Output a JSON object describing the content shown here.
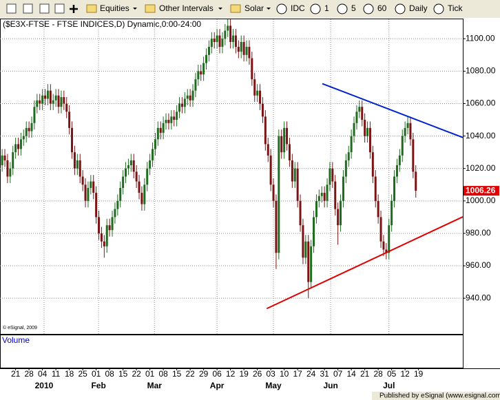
{
  "toolbar": {
    "items": [
      "Equities",
      "Other Intervals",
      "Solar",
      "IDC",
      "1",
      "5",
      "60",
      "Daily",
      "Tick"
    ]
  },
  "chart_data": {
    "type": "candlestick",
    "title": "($E3X-FTSE - FTSE INDICES,D) Dynamic,0:00-24:00",
    "copyright": "© eSignal, 2009",
    "volume_label": "Volume",
    "up_color": "#1f6b1f",
    "down_color": "#7a1414",
    "open": [
      1022,
      1028,
      1025,
      1015,
      1020,
      1030,
      1035,
      1032,
      1038,
      1040,
      1045,
      1043,
      1048,
      1058,
      1062,
      1060,
      1065,
      1063,
      1068,
      1060,
      1062,
      1065,
      1058,
      1064,
      1060,
      1055,
      1045,
      1030,
      1020,
      1025,
      1015,
      1010,
      1000,
      1008,
      1012,
      1005,
      990,
      980,
      975,
      972,
      985,
      982,
      990,
      995,
      1000,
      1008,
      1015,
      1020,
      1022,
      1025,
      1018,
      1012,
      1005,
      998,
      1010,
      1020,
      1025,
      1032,
      1038,
      1045,
      1042,
      1048,
      1050,
      1048,
      1052,
      1050,
      1055,
      1060,
      1058,
      1063,
      1065,
      1062,
      1068,
      1075,
      1080,
      1078,
      1085,
      1090,
      1095,
      1100,
      1098,
      1102,
      1095,
      1100,
      1105,
      1108,
      1098,
      1102,
      1095,
      1092,
      1098,
      1090,
      1095,
      1088,
      1075,
      1065,
      1068,
      1060,
      1052,
      1035,
      1028,
      1010,
      1000,
      968,
      1040,
      1030,
      1045,
      1035,
      1025,
      1012,
      1020,
      1000,
      985,
      965,
      975,
      950,
      972,
      990,
      1000,
      1003,
      1005,
      1000,
      1010,
      1020,
      1012,
      995,
      985,
      1000,
      1015,
      1025,
      1030,
      1040,
      1048,
      1055,
      1058,
      1050,
      1040,
      1045,
      1030,
      1015,
      1000,
      990,
      975,
      970,
      968,
      985,
      1000,
      1015,
      1022,
      1028,
      1040,
      1045,
      1048,
      1038,
      1018
    ],
    "high": [
      1032,
      1032,
      1029,
      1024,
      1034,
      1039,
      1039,
      1042,
      1044,
      1049,
      1049,
      1052,
      1062,
      1066,
      1066,
      1069,
      1069,
      1072,
      1072,
      1066,
      1069,
      1069,
      1068,
      1068,
      1064,
      1059,
      1049,
      1034,
      1029,
      1029,
      1019,
      1014,
      1012,
      1016,
      1016,
      1009,
      994,
      984,
      979,
      989,
      989,
      994,
      999,
      1004,
      1012,
      1019,
      1024,
      1026,
      1029,
      1029,
      1022,
      1016,
      1009,
      1014,
      1024,
      1029,
      1036,
      1042,
      1049,
      1049,
      1052,
      1054,
      1054,
      1056,
      1056,
      1059,
      1064,
      1064,
      1067,
      1069,
      1069,
      1072,
      1079,
      1084,
      1084,
      1089,
      1094,
      1099,
      1104,
      1104,
      1106,
      1106,
      1104,
      1109,
      1112,
      1112,
      1106,
      1106,
      1099,
      1102,
      1102,
      1099,
      1099,
      1092,
      1079,
      1072,
      1072,
      1064,
      1056,
      1039,
      1032,
      1014,
      1004,
      1044,
      1044,
      1049,
      1049,
      1039,
      1029,
      1024,
      1024,
      1004,
      989,
      979,
      979,
      976,
      994,
      1004,
      1007,
      1009,
      1009,
      1014,
      1024,
      1024,
      1016,
      999,
      1004,
      1019,
      1029,
      1034,
      1044,
      1052,
      1059,
      1062,
      1062,
      1054,
      1049,
      1049,
      1034,
      1019,
      1004,
      994,
      979,
      974,
      989,
      1004,
      1019,
      1026,
      1032,
      1044,
      1049,
      1052,
      1052,
      1042,
      1022
    ],
    "low": [
      1018,
      1021,
      1011,
      1011,
      1016,
      1026,
      1028,
      1028,
      1034,
      1036,
      1039,
      1039,
      1044,
      1054,
      1056,
      1056,
      1059,
      1059,
      1056,
      1056,
      1058,
      1054,
      1054,
      1056,
      1051,
      1041,
      1026,
      1016,
      1016,
      1011,
      1006,
      996,
      996,
      1004,
      1001,
      986,
      976,
      971,
      965,
      968,
      978,
      978,
      986,
      991,
      996,
      1004,
      1011,
      1016,
      1018,
      1014,
      1008,
      1001,
      994,
      994,
      1006,
      1016,
      1021,
      1028,
      1034,
      1038,
      1038,
      1044,
      1044,
      1044,
      1046,
      1046,
      1051,
      1054,
      1054,
      1059,
      1058,
      1058,
      1064,
      1071,
      1074,
      1074,
      1081,
      1086,
      1091,
      1094,
      1094,
      1091,
      1091,
      1096,
      1101,
      1094,
      1094,
      1091,
      1088,
      1088,
      1086,
      1086,
      1084,
      1071,
      1061,
      1061,
      1056,
      1048,
      1031,
      1024,
      1006,
      996,
      958,
      964,
      1026,
      1026,
      1031,
      1021,
      1008,
      1008,
      996,
      981,
      961,
      961,
      940,
      946,
      968,
      986,
      996,
      999,
      996,
      996,
      1006,
      1008,
      991,
      973,
      981,
      996,
      1011,
      1021,
      1026,
      1036,
      1044,
      1051,
      1046,
      1036,
      1036,
      1026,
      1011,
      996,
      986,
      971,
      966,
      964,
      964,
      981,
      996,
      1011,
      1018,
      1024,
      1036,
      1041,
      1034,
      1014,
      1002
    ],
    "close": [
      1028,
      1025,
      1015,
      1020,
      1030,
      1035,
      1032,
      1038,
      1040,
      1045,
      1043,
      1048,
      1058,
      1062,
      1060,
      1065,
      1063,
      1068,
      1060,
      1062,
      1065,
      1058,
      1064,
      1060,
      1055,
      1045,
      1030,
      1020,
      1025,
      1015,
      1010,
      1000,
      1008,
      1012,
      1005,
      990,
      980,
      975,
      972,
      985,
      982,
      990,
      995,
      1000,
      1008,
      1015,
      1020,
      1022,
      1025,
      1018,
      1012,
      1005,
      998,
      1010,
      1020,
      1025,
      1032,
      1038,
      1045,
      1042,
      1048,
      1050,
      1048,
      1052,
      1050,
      1055,
      1060,
      1058,
      1063,
      1065,
      1062,
      1068,
      1075,
      1080,
      1078,
      1085,
      1090,
      1095,
      1100,
      1098,
      1102,
      1095,
      1100,
      1105,
      1108,
      1098,
      1102,
      1095,
      1092,
      1098,
      1090,
      1095,
      1088,
      1075,
      1065,
      1068,
      1060,
      1052,
      1035,
      1028,
      1010,
      1000,
      968,
      1040,
      1030,
      1045,
      1035,
      1025,
      1012,
      1020,
      1000,
      985,
      965,
      975,
      950,
      972,
      990,
      1000,
      1003,
      1005,
      1000,
      1010,
      1020,
      1012,
      995,
      985,
      1000,
      1015,
      1025,
      1030,
      1040,
      1048,
      1055,
      1058,
      1050,
      1040,
      1045,
      1030,
      1015,
      1000,
      990,
      975,
      970,
      968,
      985,
      1000,
      1015,
      1022,
      1028,
      1040,
      1045,
      1048,
      1038,
      1018,
      1006.26
    ],
    "xlim": [
      -0.8,
      171.5
    ],
    "xticks": [
      {
        "value": 5,
        "label": "21"
      },
      {
        "value": 10,
        "label": "28"
      },
      {
        "value": 15,
        "label": "04"
      },
      {
        "value": 20,
        "label": "11"
      },
      {
        "value": 25,
        "label": "18"
      },
      {
        "value": 30,
        "label": "25"
      },
      {
        "value": 35,
        "label": "01"
      },
      {
        "value": 40,
        "label": "08"
      },
      {
        "value": 45,
        "label": "15"
      },
      {
        "value": 50,
        "label": "22"
      },
      {
        "value": 55,
        "label": "01"
      },
      {
        "value": 60,
        "label": "08"
      },
      {
        "value": 65,
        "label": "15"
      },
      {
        "value": 70,
        "label": "22"
      },
      {
        "value": 75,
        "label": "29"
      },
      {
        "value": 80,
        "label": "06"
      },
      {
        "value": 85,
        "label": "12"
      },
      {
        "value": 90,
        "label": "19"
      },
      {
        "value": 95,
        "label": "26"
      },
      {
        "value": 100,
        "label": "03"
      },
      {
        "value": 105,
        "label": "10"
      },
      {
        "value": 110,
        "label": "17"
      },
      {
        "value": 115,
        "label": "24"
      },
      {
        "value": 120,
        "label": "31"
      },
      {
        "value": 125,
        "label": "07"
      },
      {
        "value": 130,
        "label": "14"
      },
      {
        "value": 135,
        "label": "21"
      },
      {
        "value": 140,
        "label": "28"
      },
      {
        "value": 145,
        "label": "05"
      },
      {
        "value": 150,
        "label": "12"
      },
      {
        "value": 155,
        "label": "19"
      }
    ],
    "month_labels": [
      {
        "value": 15.6,
        "label": "2010"
      },
      {
        "value": 35.9,
        "label": "Feb"
      },
      {
        "value": 56.7,
        "label": "Mar"
      },
      {
        "value": 80,
        "label": "Apr"
      },
      {
        "value": 101,
        "label": "May"
      },
      {
        "value": 122.3,
        "label": "Jun"
      },
      {
        "value": 144,
        "label": "Jul"
      }
    ],
    "ylim": [
      918,
      1112
    ],
    "yticks": [
      {
        "value": 940,
        "label": "940.00"
      },
      {
        "value": 960,
        "label": "960.00"
      },
      {
        "value": 980,
        "label": "980.00"
      },
      {
        "value": 1000,
        "label": "1000.00"
      },
      {
        "value": 1020,
        "label": "1020.00"
      },
      {
        "value": 1040,
        "label": "1040.00"
      },
      {
        "value": 1060,
        "label": "1060.00"
      },
      {
        "value": 1080,
        "label": "1080.00"
      },
      {
        "value": 1100,
        "label": "1100.00"
      }
    ],
    "grid": true,
    "last_price_color": "#e00000",
    "trendlines": [
      {
        "color": "#0022cc",
        "x": [
          119.2,
          171.5
        ],
        "values": [
          1072.3,
          1039.1
        ]
      },
      {
        "color": "#e00000",
        "x": [
          98.5,
          171.5
        ],
        "values": [
          933.6,
          990.2
        ]
      }
    ]
  },
  "footer": "Published by eSignal (www.esignal.com)"
}
